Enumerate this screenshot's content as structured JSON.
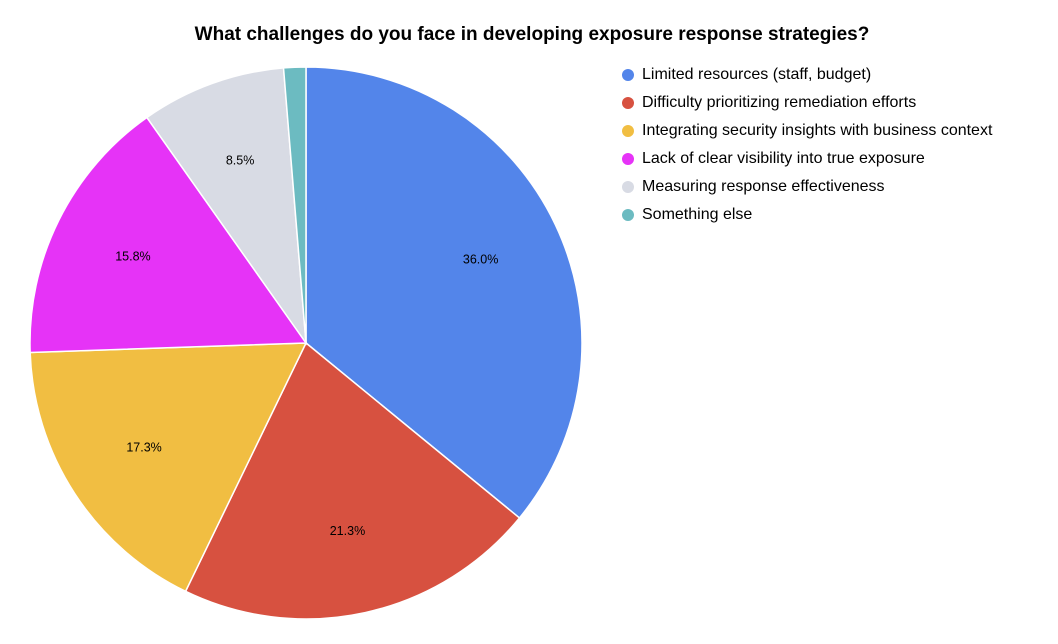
{
  "chart_data": {
    "type": "pie",
    "title": "What challenges do you face in developing exposure response strategies?",
    "legend_position": "right",
    "categories": [
      "Limited resources (staff, budget)",
      "Difficulty prioritizing remediation efforts",
      "Integrating security insights with business context",
      "Lack of clear visibility into true exposure",
      "Measuring response effectiveness",
      "Something else"
    ],
    "values": [
      36.0,
      21.3,
      17.3,
      15.8,
      8.5,
      1.3
    ],
    "labels": [
      "36.0%",
      "21.3%",
      "17.3%",
      "15.8%",
      "8.5%",
      ""
    ],
    "colors": [
      "#5385EA",
      "#D75140",
      "#F1BE42",
      "#E633F7",
      "#D8DBE4",
      "#6CBBC1"
    ]
  }
}
